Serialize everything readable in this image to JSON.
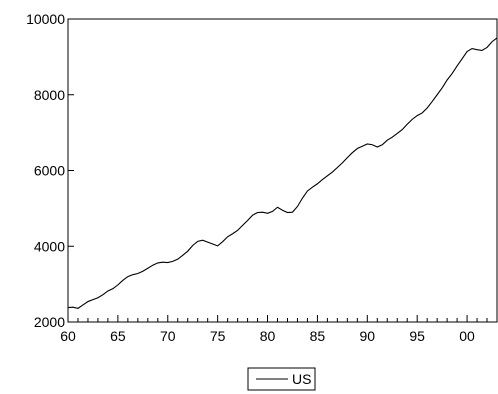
{
  "chart_data": {
    "type": "line",
    "title": "",
    "xlabel": "",
    "ylabel": "",
    "xlim": [
      1960,
      2003
    ],
    "ylim": [
      2000,
      10000
    ],
    "xticks": [
      1960,
      1965,
      1970,
      1975,
      1980,
      1985,
      1990,
      1995,
      2000
    ],
    "xtick_labels": [
      "60",
      "65",
      "70",
      "75",
      "80",
      "85",
      "90",
      "95",
      "00"
    ],
    "yticks": [
      2000,
      4000,
      6000,
      8000,
      10000
    ],
    "ytick_labels": [
      "2000",
      "4000",
      "6000",
      "8000",
      "10000"
    ],
    "grid": false,
    "legend_position": "bottom-center",
    "series": [
      {
        "name": "US",
        "color": "#000000",
        "x": [
          1960.0,
          1960.5,
          1961.0,
          1961.5,
          1962.0,
          1962.5,
          1963.0,
          1963.5,
          1964.0,
          1964.5,
          1965.0,
          1965.5,
          1966.0,
          1966.5,
          1967.0,
          1967.5,
          1968.0,
          1968.5,
          1969.0,
          1969.5,
          1970.0,
          1970.5,
          1971.0,
          1971.5,
          1972.0,
          1972.5,
          1973.0,
          1973.5,
          1974.0,
          1974.5,
          1975.0,
          1975.5,
          1976.0,
          1976.5,
          1977.0,
          1977.5,
          1978.0,
          1978.5,
          1979.0,
          1979.5,
          1980.0,
          1980.5,
          1981.0,
          1981.5,
          1982.0,
          1982.5,
          1983.0,
          1983.5,
          1984.0,
          1984.5,
          1985.0,
          1985.5,
          1986.0,
          1986.5,
          1987.0,
          1987.5,
          1988.0,
          1988.5,
          1989.0,
          1989.5,
          1990.0,
          1990.5,
          1991.0,
          1991.5,
          1992.0,
          1992.5,
          1993.0,
          1993.5,
          1994.0,
          1994.5,
          1995.0,
          1995.5,
          1996.0,
          1996.5,
          1997.0,
          1997.5,
          1998.0,
          1998.5,
          1999.0,
          1999.5,
          2000.0,
          2000.5,
          2001.0,
          2001.5,
          2002.0,
          2002.5,
          2003.0
        ],
        "y": [
          2380,
          2390,
          2360,
          2450,
          2540,
          2590,
          2640,
          2720,
          2820,
          2880,
          2980,
          3100,
          3200,
          3250,
          3280,
          3340,
          3420,
          3500,
          3560,
          3580,
          3570,
          3600,
          3660,
          3760,
          3870,
          4020,
          4130,
          4160,
          4110,
          4060,
          4010,
          4120,
          4250,
          4330,
          4420,
          4550,
          4680,
          4820,
          4890,
          4900,
          4870,
          4920,
          5030,
          4950,
          4890,
          4900,
          5050,
          5270,
          5460,
          5560,
          5650,
          5760,
          5860,
          5960,
          6080,
          6200,
          6340,
          6470,
          6580,
          6640,
          6700,
          6680,
          6620,
          6680,
          6800,
          6880,
          6980,
          7080,
          7220,
          7350,
          7450,
          7520,
          7650,
          7820,
          8000,
          8180,
          8390,
          8560,
          8760,
          8950,
          9140,
          9220,
          9190,
          9170,
          9250,
          9400,
          9500
        ]
      }
    ]
  }
}
